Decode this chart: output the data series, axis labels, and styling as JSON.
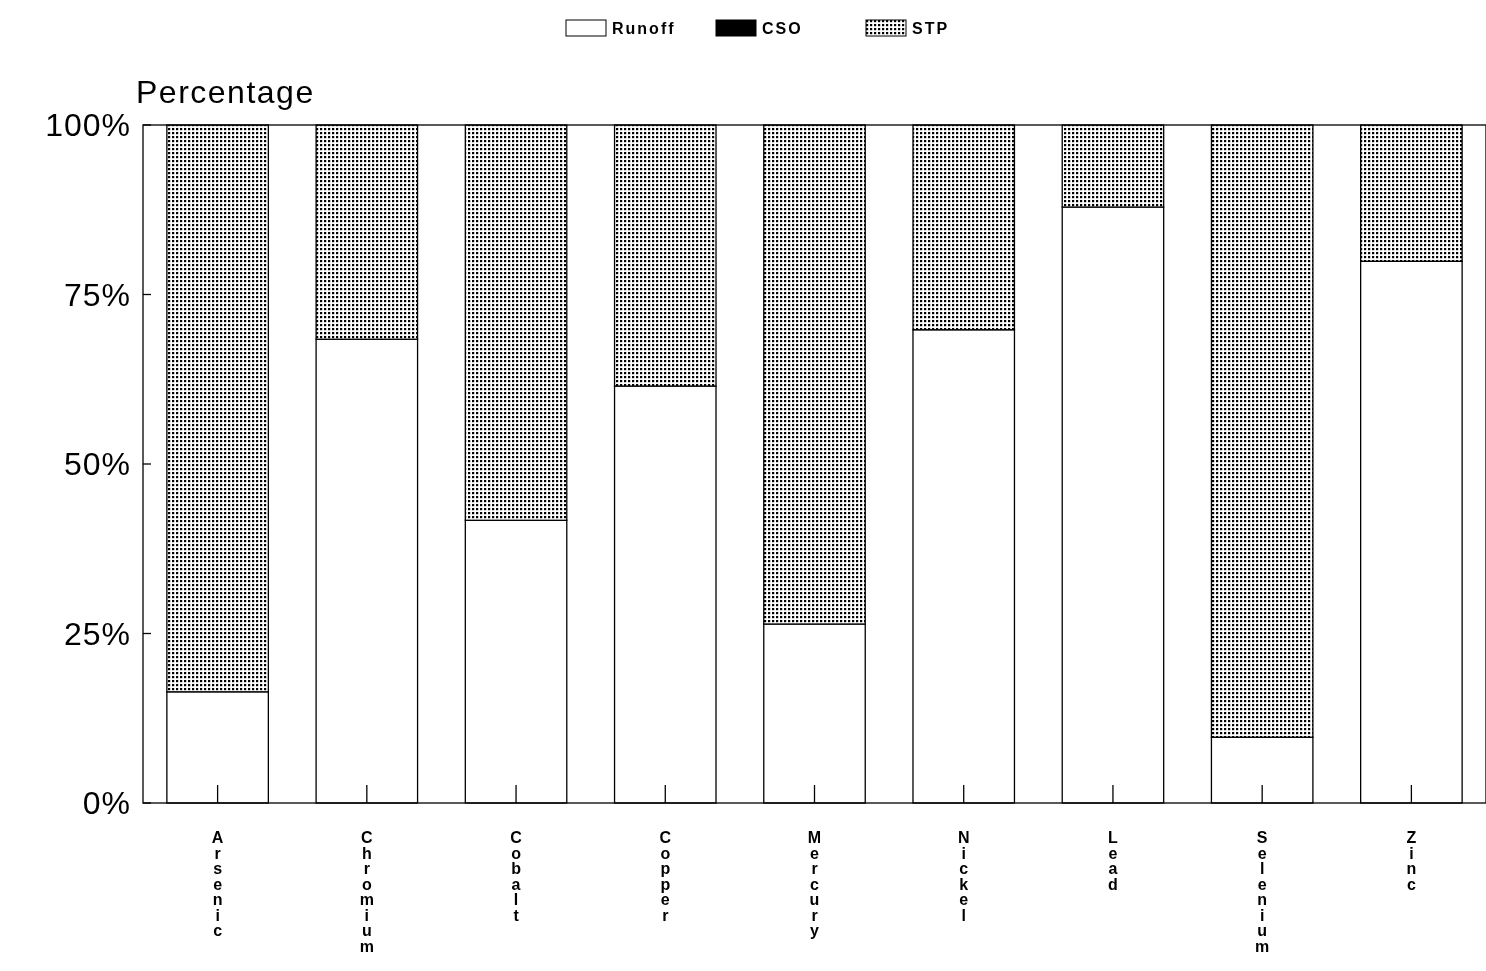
{
  "chart_data": {
    "type": "bar",
    "stacked": true,
    "ylabel": "Percentage",
    "categories": [
      "Arsenic",
      "Chromium",
      "Cobalt",
      "Copper",
      "Mercury",
      "Nickel",
      "Lead",
      "Selenium",
      "Zinc"
    ],
    "series": [
      {
        "name": "Runoff",
        "color": "#ffffff",
        "values": [
          16.4,
          68.4,
          41.7,
          61.5,
          26.4,
          69.8,
          87.9,
          9.7,
          79.9
        ]
      },
      {
        "name": "CSO",
        "color": "#000000",
        "values": [
          0,
          0,
          0,
          0,
          0,
          0,
          0,
          0,
          0
        ]
      },
      {
        "name": "STP",
        "color": "#000000",
        "values": [
          83.6,
          31.6,
          58.3,
          38.5,
          73.6,
          30.2,
          12.1,
          90.3,
          20.1
        ]
      }
    ],
    "ylim": [
      0,
      100
    ],
    "yticks": [
      {
        "value": 0,
        "label": "0%"
      },
      {
        "value": 25,
        "label": "25%"
      },
      {
        "value": 50,
        "label": "50%"
      },
      {
        "value": 75,
        "label": "75%"
      },
      {
        "value": 100,
        "label": "100%"
      }
    ],
    "grid": false,
    "legend": "top"
  }
}
